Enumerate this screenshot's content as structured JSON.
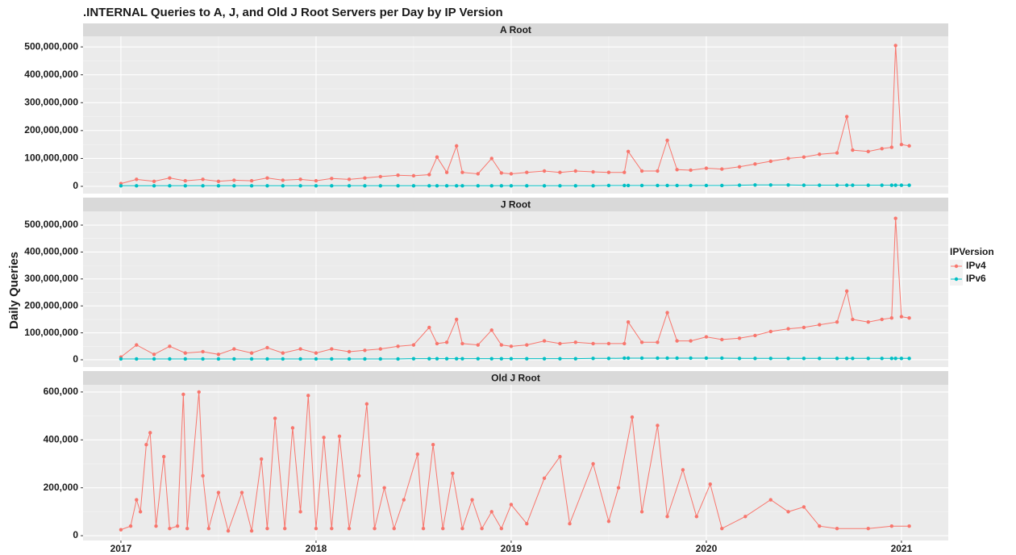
{
  "title": ".INTERNAL Queries to A, J, and Old J Root Servers per Day by IP Version",
  "ylabel": "Daily Queries",
  "legend_title": "IPVersion",
  "chart_data": [
    {
      "type": "line",
      "title": "A Root",
      "x": [
        2017.0,
        2017.08,
        2017.17,
        2017.25,
        2017.33,
        2017.42,
        2017.5,
        2017.58,
        2017.67,
        2017.75,
        2017.83,
        2017.92,
        2018.0,
        2018.08,
        2018.17,
        2018.25,
        2018.33,
        2018.42,
        2018.5,
        2018.58,
        2018.62,
        2018.67,
        2018.72,
        2018.75,
        2018.83,
        2018.9,
        2018.95,
        2019.0,
        2019.08,
        2019.17,
        2019.25,
        2019.33,
        2019.42,
        2019.5,
        2019.58,
        2019.6,
        2019.67,
        2019.75,
        2019.8,
        2019.85,
        2019.92,
        2020.0,
        2020.08,
        2020.17,
        2020.25,
        2020.33,
        2020.42,
        2020.5,
        2020.58,
        2020.67,
        2020.72,
        2020.75,
        2020.83,
        2020.9,
        2020.95,
        2020.97,
        2021.0,
        2021.04
      ],
      "xlim": [
        2016.806,
        2021.24
      ],
      "xticks": [
        2017,
        2018,
        2019,
        2020,
        2021
      ],
      "ylim": [
        -26000000,
        538000000
      ],
      "yticks": [
        0,
        {
          "value": 100000000,
          "label": "100,000,000"
        },
        {
          "value": 200000000,
          "label": "200,000,000"
        },
        {
          "value": 300000000,
          "label": "300,000,000"
        },
        {
          "value": 400000000,
          "label": "400,000,000"
        },
        {
          "value": 500000000,
          "label": "500,000,000"
        }
      ],
      "grid": true,
      "series": [
        {
          "name": "IPv4",
          "color": "#F8766D",
          "values": [
            10000000.0,
            25000000.0,
            18000000.0,
            30000000.0,
            20000000.0,
            25000000.0,
            18000000.0,
            22000000.0,
            20000000.0,
            30000000.0,
            22000000.0,
            25000000.0,
            20000000.0,
            28000000.0,
            25000000.0,
            30000000.0,
            35000000.0,
            40000000.0,
            38000000.0,
            42000000.0,
            105000000.0,
            50000000.0,
            145000000.0,
            50000000.0,
            45000000.0,
            100000000.0,
            48000000.0,
            45000000.0,
            50000000.0,
            55000000.0,
            50000000.0,
            55000000.0,
            52000000.0,
            50000000.0,
            50000000.0,
            125000000.0,
            55000000.0,
            55000000.0,
            165000000.0,
            60000000.0,
            58000000.0,
            65000000.0,
            62000000.0,
            70000000.0,
            80000000.0,
            90000000.0,
            100000000.0,
            105000000.0,
            115000000.0,
            120000000.0,
            250000000.0,
            130000000.0,
            125000000.0,
            135000000.0,
            140000000.0,
            505000000.0,
            150000000.0,
            145000000.0
          ]
        },
        {
          "name": "IPv6",
          "color": "#00BFC4",
          "values": [
            2000000.0,
            2000000.0,
            2000000.0,
            2000000.0,
            2000000.0,
            2000000.0,
            2000000.0,
            2000000.0,
            2000000.0,
            2000000.0,
            2000000.0,
            2000000.0,
            2000000.0,
            2000000.0,
            2000000.0,
            2000000.0,
            2000000.0,
            2000000.0,
            2000000.0,
            2000000.0,
            2000000.0,
            2000000.0,
            2000000.0,
            2000000.0,
            2000000.0,
            2000000.0,
            2000000.0,
            2000000.0,
            2000000.0,
            2000000.0,
            2000000.0,
            2000000.0,
            2000000.0,
            3000000.0,
            3000000.0,
            3000000.0,
            3000000.0,
            3000000.0,
            3000000.0,
            3000000.0,
            3000000.0,
            3000000.0,
            3000000.0,
            4000000.0,
            5000000.0,
            5000000.0,
            5000000.0,
            4000000.0,
            4000000.0,
            4000000.0,
            4000000.0,
            4000000.0,
            4000000.0,
            4000000.0,
            4000000.0,
            4000000.0,
            4000000.0,
            4000000.0
          ]
        }
      ]
    },
    {
      "type": "line",
      "title": "J Root",
      "x": [
        2017.0,
        2017.08,
        2017.17,
        2017.25,
        2017.33,
        2017.42,
        2017.5,
        2017.58,
        2017.67,
        2017.75,
        2017.83,
        2017.92,
        2018.0,
        2018.08,
        2018.17,
        2018.25,
        2018.33,
        2018.42,
        2018.5,
        2018.58,
        2018.62,
        2018.67,
        2018.72,
        2018.75,
        2018.83,
        2018.9,
        2018.95,
        2019.0,
        2019.08,
        2019.17,
        2019.25,
        2019.33,
        2019.42,
        2019.5,
        2019.58,
        2019.6,
        2019.67,
        2019.75,
        2019.8,
        2019.85,
        2019.92,
        2020.0,
        2020.08,
        2020.17,
        2020.25,
        2020.33,
        2020.42,
        2020.5,
        2020.58,
        2020.67,
        2020.72,
        2020.75,
        2020.83,
        2020.9,
        2020.95,
        2020.97,
        2021.0,
        2021.04
      ],
      "xlim": [
        2016.806,
        2021.24
      ],
      "xticks": [
        2017,
        2018,
        2019,
        2020,
        2021
      ],
      "ylim": [
        -27000000,
        551000000
      ],
      "yticks": [
        0,
        {
          "value": 100000000,
          "label": "100,000,000"
        },
        {
          "value": 200000000,
          "label": "200,000,000"
        },
        {
          "value": 300000000,
          "label": "300,000,000"
        },
        {
          "value": 400000000,
          "label": "400,000,000"
        },
        {
          "value": 500000000,
          "label": "500,000,000"
        }
      ],
      "grid": true,
      "series": [
        {
          "name": "IPv4",
          "color": "#F8766D",
          "values": [
            10000000.0,
            55000000.0,
            20000000.0,
            50000000.0,
            25000000.0,
            30000000.0,
            20000000.0,
            40000000.0,
            25000000.0,
            45000000.0,
            25000000.0,
            40000000.0,
            25000000.0,
            40000000.0,
            30000000.0,
            35000000.0,
            40000000.0,
            50000000.0,
            55000000.0,
            120000000.0,
            60000000.0,
            65000000.0,
            150000000.0,
            60000000.0,
            55000000.0,
            110000000.0,
            55000000.0,
            50000000.0,
            55000000.0,
            70000000.0,
            60000000.0,
            65000000.0,
            60000000.0,
            60000000.0,
            60000000.0,
            140000000.0,
            65000000.0,
            65000000.0,
            175000000.0,
            70000000.0,
            70000000.0,
            85000000.0,
            75000000.0,
            80000000.0,
            90000000.0,
            105000000.0,
            115000000.0,
            120000000.0,
            130000000.0,
            140000000.0,
            255000000.0,
            150000000.0,
            140000000.0,
            150000000.0,
            155000000.0,
            525000000.0,
            160000000.0,
            155000000.0
          ]
        },
        {
          "name": "IPv6",
          "color": "#00BFC4",
          "values": [
            3000000.0,
            3000000.0,
            3000000.0,
            3000000.0,
            3000000.0,
            3000000.0,
            3000000.0,
            3000000.0,
            3000000.0,
            3000000.0,
            3000000.0,
            3000000.0,
            3000000.0,
            3000000.0,
            3000000.0,
            3000000.0,
            3000000.0,
            3000000.0,
            4000000.0,
            4000000.0,
            4000000.0,
            4000000.0,
            4000000.0,
            4000000.0,
            4000000.0,
            4000000.0,
            4000000.0,
            4000000.0,
            4000000.0,
            4000000.0,
            4000000.0,
            4000000.0,
            5000000.0,
            5000000.0,
            6000000.0,
            6000000.0,
            6000000.0,
            6000000.0,
            6000000.0,
            6000000.0,
            6000000.0,
            6000000.0,
            6000000.0,
            5000000.0,
            5000000.0,
            5000000.0,
            5000000.0,
            5000000.0,
            5000000.0,
            5000000.0,
            5000000.0,
            5000000.0,
            5000000.0,
            5000000.0,
            5000000.0,
            5000000.0,
            5000000.0,
            5000000.0
          ]
        }
      ]
    },
    {
      "type": "line",
      "title": "Old J Root",
      "x": [
        2017.0,
        2017.05,
        2017.08,
        2017.1,
        2017.13,
        2017.15,
        2017.18,
        2017.22,
        2017.25,
        2017.29,
        2017.32,
        2017.34,
        2017.4,
        2017.42,
        2017.45,
        2017.5,
        2017.55,
        2017.62,
        2017.67,
        2017.72,
        2017.75,
        2017.79,
        2017.84,
        2017.88,
        2017.92,
        2017.96,
        2018.0,
        2018.04,
        2018.08,
        2018.12,
        2018.17,
        2018.22,
        2018.26,
        2018.3,
        2018.35,
        2018.4,
        2018.45,
        2018.52,
        2018.55,
        2018.6,
        2018.65,
        2018.7,
        2018.75,
        2018.8,
        2018.85,
        2018.9,
        2018.95,
        2019.0,
        2019.08,
        2019.17,
        2019.25,
        2019.3,
        2019.42,
        2019.5,
        2019.55,
        2019.62,
        2019.67,
        2019.75,
        2019.8,
        2019.88,
        2019.95,
        2020.02,
        2020.08,
        2020.2,
        2020.33,
        2020.42,
        2020.5,
        2020.58,
        2020.67,
        2020.83,
        2020.95,
        2021.04
      ],
      "xlim": [
        2016.806,
        2021.24
      ],
      "xticks": [
        2017,
        2018,
        2019,
        2020,
        2021
      ],
      "ylim": [
        -20000,
        630000
      ],
      "yticks": [
        0,
        {
          "value": 200000,
          "label": "200,000"
        },
        {
          "value": 400000,
          "label": "400,000"
        },
        {
          "value": 600000,
          "label": "600,000"
        }
      ],
      "grid": true,
      "series": [
        {
          "name": "IPv4",
          "color": "#F8766D",
          "values": [
            25000,
            40000,
            150000,
            100000,
            380000,
            430000,
            40000,
            330000,
            30000,
            40000,
            590000,
            30000,
            600000,
            250000,
            30000,
            180000,
            20000,
            180000,
            20000,
            320000,
            30000,
            490000,
            30000,
            450000,
            100000,
            585000,
            30000,
            410000,
            30000,
            415000,
            30000,
            250000,
            550000,
            30000,
            200000,
            30000,
            150000,
            340000,
            30000,
            380000,
            30000,
            260000,
            30000,
            150000,
            30000,
            100000,
            30000,
            130000,
            50000,
            240000,
            330000,
            50000,
            300000,
            60000,
            200000,
            495000,
            100000,
            460000,
            80000,
            275000,
            80000,
            215000,
            30000,
            80000,
            150000,
            100000,
            120000,
            40000,
            30000,
            30000,
            40000,
            40000
          ]
        }
      ]
    }
  ]
}
